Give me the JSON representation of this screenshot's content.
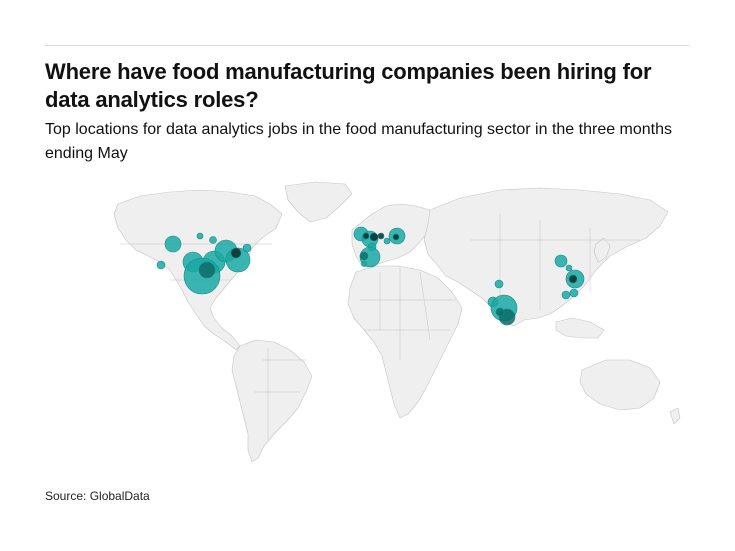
{
  "header": {
    "title": "Where have food manufacturing companies been hiring for data analytics roles?",
    "subtitle": "Top locations for data analytics jobs in the food manufacturing sector in the three months ending May"
  },
  "footer": {
    "source": "Source: GlobalData"
  },
  "map": {
    "land_color": "#efefef",
    "border_color": "#c4c4c4",
    "bubble_color": "#1aa9a4",
    "bubble_dark_color": "#0b2b2a",
    "bubble_regions": [
      "western-north-america",
      "central-north-america",
      "southern-united-states",
      "eastern-north-america",
      "western-europe",
      "central-europe",
      "iberia",
      "south-asia",
      "east-asia"
    ]
  }
}
